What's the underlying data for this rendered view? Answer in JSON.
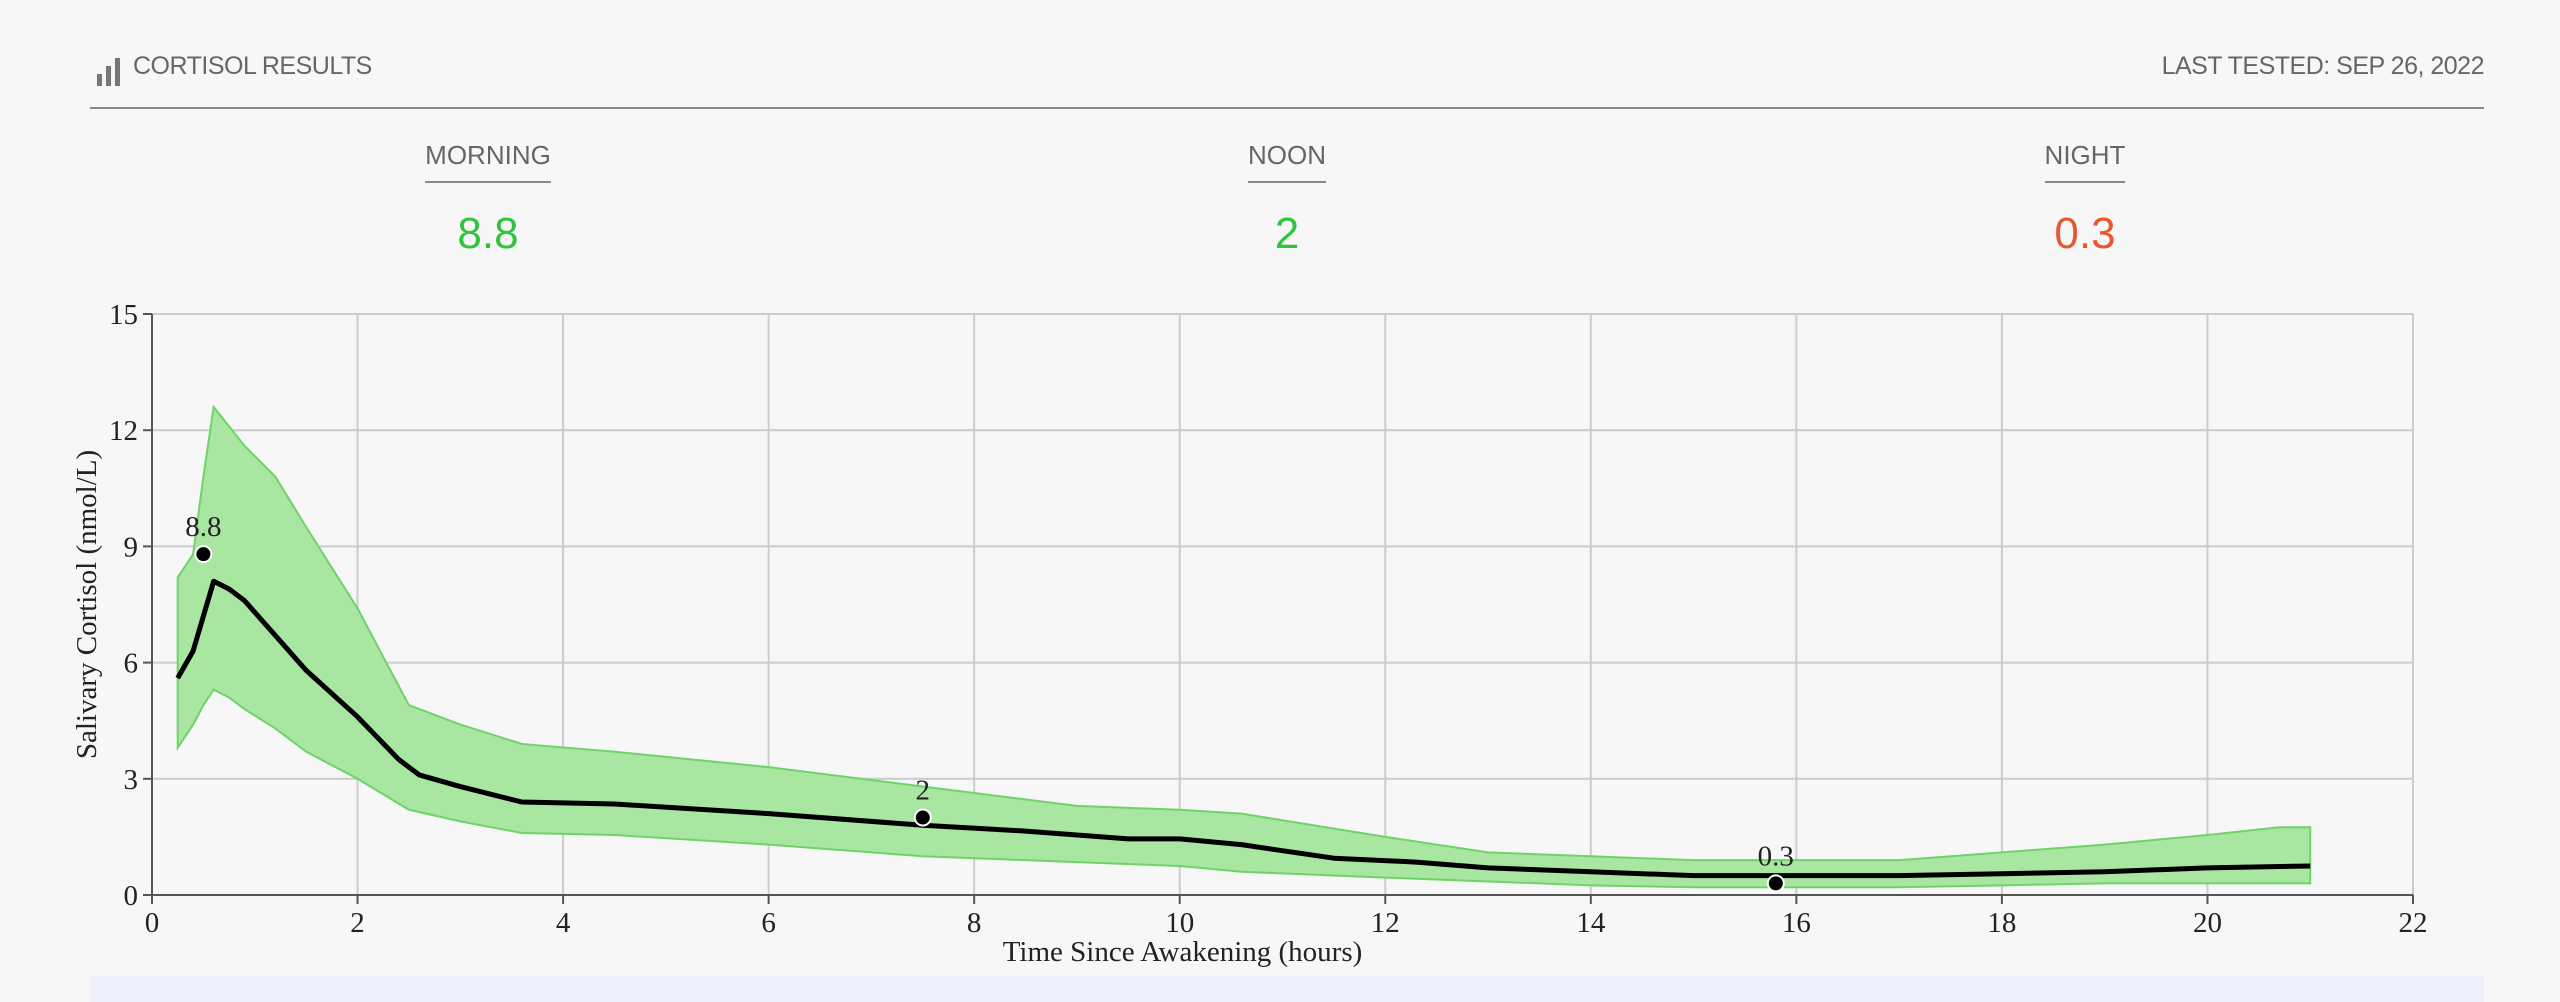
{
  "header": {
    "title": "CORTISOL RESULTS",
    "last_tested": "LAST TESTED: SEP 26, 2022"
  },
  "summary": [
    {
      "label": "MORNING",
      "value": "8.8",
      "color": "#2fc43a"
    },
    {
      "label": "NOON",
      "value": "2",
      "color": "#2fc43a"
    },
    {
      "label": "NIGHT",
      "value": "0.3",
      "color": "#e8572f"
    }
  ],
  "chart_data": {
    "type": "line",
    "ylabel": "Salivary Cortisol (nmol/L)",
    "xlabel": "Time Since Awakening (hours)",
    "xlim": [
      0,
      22
    ],
    "ylim": [
      0,
      15
    ],
    "xticks": [
      0,
      2,
      4,
      6,
      8,
      10,
      12,
      14,
      16,
      18,
      20,
      22
    ],
    "yticks": [
      0,
      3,
      6,
      9,
      12,
      15
    ],
    "grid": true,
    "band": {
      "color": "#a9e6a2",
      "edge": "#6fd36a",
      "x": [
        0.25,
        0.4,
        0.5,
        0.6,
        0.75,
        0.9,
        1.2,
        1.5,
        2,
        2.5,
        3,
        3.6,
        4.5,
        6,
        7.5,
        9,
        10,
        10.6,
        12,
        13,
        14,
        15,
        16,
        17,
        18,
        19,
        20,
        20.7,
        21
      ],
      "upper": [
        8.2,
        8.8,
        10.8,
        12.6,
        12.1,
        11.6,
        10.8,
        9.5,
        7.4,
        4.9,
        4.4,
        3.9,
        3.7,
        3.3,
        2.8,
        2.3,
        2.2,
        2.1,
        1.5,
        1.1,
        1.0,
        0.9,
        0.9,
        0.9,
        1.1,
        1.3,
        1.55,
        1.75,
        1.75
      ],
      "lower": [
        3.8,
        4.4,
        4.9,
        5.3,
        5.1,
        4.8,
        4.3,
        3.7,
        3.0,
        2.2,
        1.9,
        1.6,
        1.55,
        1.3,
        1.0,
        0.85,
        0.75,
        0.6,
        0.45,
        0.35,
        0.25,
        0.2,
        0.2,
        0.2,
        0.25,
        0.3,
        0.3,
        0.3,
        0.3
      ]
    },
    "line": {
      "color": "#000000",
      "x": [
        0.25,
        0.4,
        0.6,
        0.75,
        0.9,
        1.1,
        1.5,
        2,
        2.4,
        2.6,
        3,
        3.6,
        4.5,
        6,
        7.5,
        8.5,
        9.5,
        10,
        10.6,
        11.5,
        12.3,
        13,
        14,
        15,
        16,
        17,
        18,
        19,
        20,
        21
      ],
      "values": [
        5.6,
        6.3,
        8.1,
        7.9,
        7.6,
        7.0,
        5.8,
        4.6,
        3.5,
        3.1,
        2.8,
        2.4,
        2.35,
        2.1,
        1.8,
        1.65,
        1.45,
        1.45,
        1.3,
        0.95,
        0.85,
        0.7,
        0.6,
        0.5,
        0.5,
        0.5,
        0.55,
        0.6,
        0.7,
        0.75
      ]
    },
    "points": {
      "color": "#000000",
      "x": [
        0.5,
        7.5,
        15.8
      ],
      "values": [
        8.8,
        2,
        0.3
      ]
    }
  }
}
